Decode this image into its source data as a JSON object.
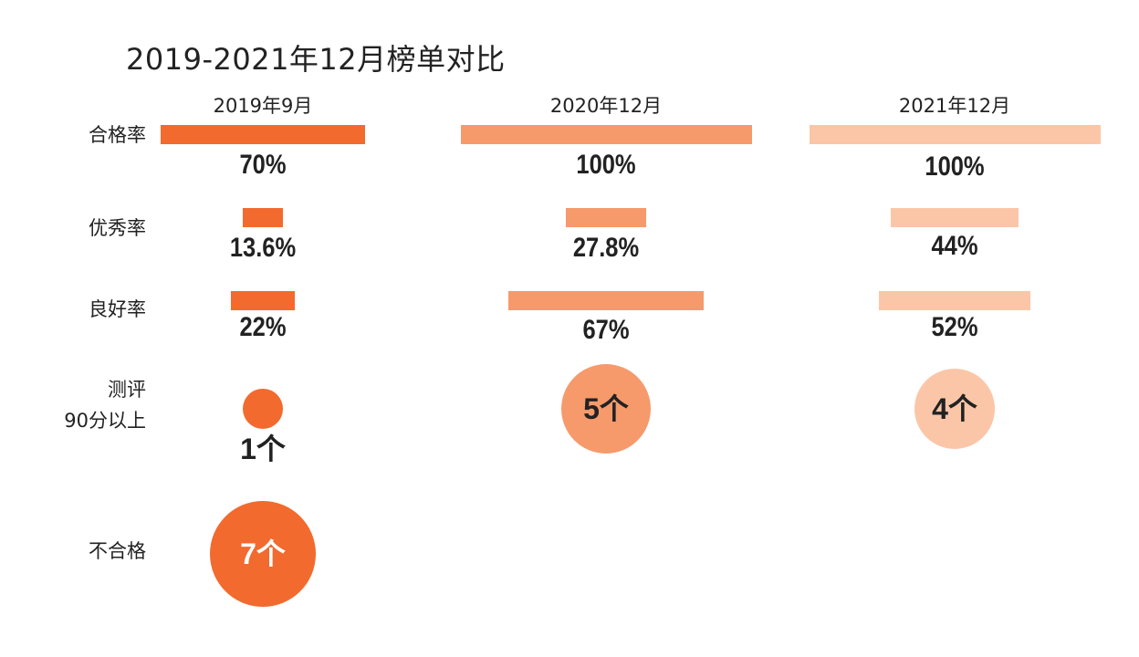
{
  "chart_data": {
    "type": "bar",
    "title": "2019-2021年12月榜单对比",
    "categories": [
      "2019年9月",
      "2020年12月",
      "2021年12月"
    ],
    "colors": [
      "#f26a2e",
      "#f69a6c",
      "#fbc6a8"
    ],
    "rate_rows": [
      {
        "name": "合格率",
        "values": [
          70,
          100,
          100
        ],
        "labels": [
          "70%",
          "100%",
          "100%"
        ]
      },
      {
        "name": "优秀率",
        "values": [
          13.6,
          27.8,
          44
        ],
        "labels": [
          "13.6%",
          "27.8%",
          "44%"
        ]
      },
      {
        "name": "良好率",
        "values": [
          22,
          67,
          52
        ],
        "labels": [
          "22%",
          "67%",
          "52%"
        ]
      }
    ],
    "count_rows": [
      {
        "name": "测评\n90分以上",
        "values": [
          1,
          5,
          4
        ],
        "labels": [
          "1个",
          "5个",
          "4个"
        ]
      },
      {
        "name": "不合格",
        "values": [
          7,
          null,
          null
        ],
        "labels": [
          "7个",
          "",
          ""
        ]
      }
    ],
    "ylim": [
      0,
      100
    ]
  }
}
